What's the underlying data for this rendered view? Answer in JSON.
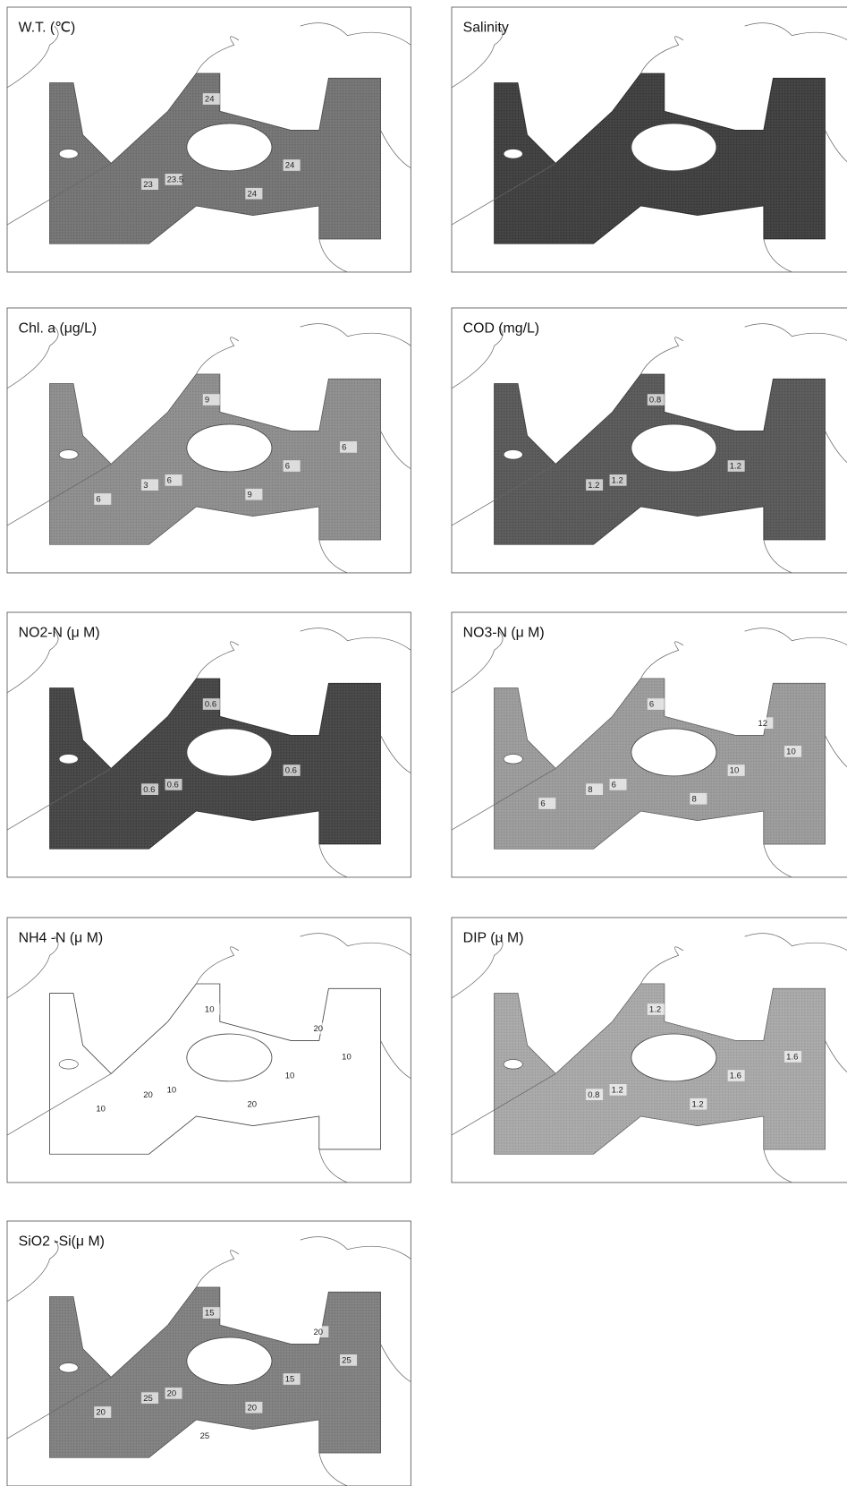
{
  "panels": [
    {
      "title": "W.T. (℃)",
      "labels": [
        "23",
        "23.5",
        "24",
        "24",
        "24"
      ]
    },
    {
      "title": "Salinity",
      "labels": []
    },
    {
      "title": "Chl. a (μg/L)",
      "labels": [
        "3",
        "6",
        "9",
        "6",
        "9",
        "6",
        "6"
      ]
    },
    {
      "title": "COD (mg/L)",
      "labels": [
        "1.2",
        "1.2",
        "0.8",
        "1.2"
      ]
    },
    {
      "title": "NO2-N (μ M)",
      "labels": [
        "0.6",
        "0.6",
        "0.6",
        "0.6"
      ]
    },
    {
      "title": "NO3-N (μ M)",
      "labels": [
        "8",
        "6",
        "6",
        "10",
        "8",
        "10",
        "6",
        "12"
      ]
    },
    {
      "title": "NH4 -N (μ M)",
      "labels": [
        "20",
        "10",
        "10",
        "10",
        "20",
        "10",
        "10",
        "20"
      ]
    },
    {
      "title": "DIP (μ M)",
      "labels": [
        "0.8",
        "1.2",
        "1.2",
        "1.6",
        "1.2",
        "1.6"
      ]
    },
    {
      "title": "SiO2 -Si(μ M)",
      "labels": [
        "25",
        "20",
        "15",
        "15",
        "20",
        "25",
        "20",
        "20",
        "25"
      ]
    }
  ]
}
